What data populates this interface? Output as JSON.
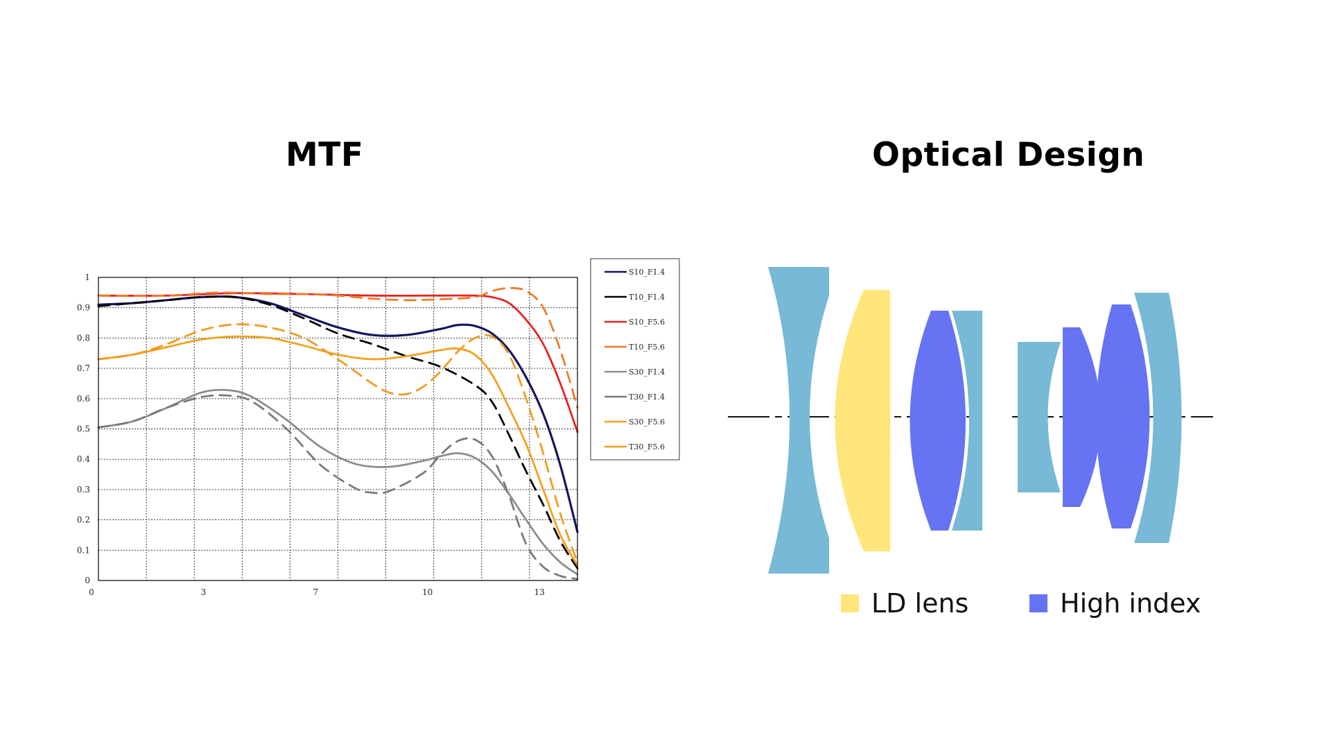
{
  "titles": {
    "mtf": "MTF",
    "optical": "Optical Design"
  },
  "optical_legend": [
    {
      "label": "LD lens",
      "color": "#FFE57A"
    },
    {
      "label": "High index",
      "color": "#6673F2"
    }
  ],
  "lens_colors": {
    "standard": "#77B9D6",
    "ld": "#FFE57A",
    "high_index": "#6673F2"
  },
  "chart_data": {
    "type": "line",
    "title": "MTF",
    "xlabel": "",
    "ylabel": "",
    "xlim": [
      0,
      14
    ],
    "ylim": [
      0,
      1
    ],
    "x_ticks": [
      {
        "value": 0,
        "label": "0"
      },
      {
        "value": 3.27,
        "label": "3"
      },
      {
        "value": 6.55,
        "label": "7"
      },
      {
        "value": 9.82,
        "label": "10"
      },
      {
        "value": 13.09,
        "label": "13"
      }
    ],
    "x_gridlines": [
      1.4,
      2.8,
      4.2,
      5.6,
      7.0,
      8.4,
      9.8,
      11.2,
      12.6
    ],
    "y_ticks": [
      0,
      0.1,
      0.2,
      0.3,
      0.4,
      0.5,
      0.6,
      0.7,
      0.8,
      0.9,
      1
    ],
    "grid": true,
    "legend_position": "right",
    "series": [
      {
        "name": "S10_F1.4",
        "color": "#14165E",
        "dash": false,
        "points": [
          [
            0,
            0.91
          ],
          [
            1,
            0.915
          ],
          [
            2,
            0.925
          ],
          [
            3,
            0.935
          ],
          [
            4,
            0.935
          ],
          [
            5,
            0.915
          ],
          [
            6,
            0.875
          ],
          [
            7,
            0.835
          ],
          [
            8,
            0.81
          ],
          [
            9,
            0.81
          ],
          [
            10,
            0.83
          ],
          [
            10.5,
            0.843
          ],
          [
            11,
            0.84
          ],
          [
            11.5,
            0.815
          ],
          [
            12,
            0.76
          ],
          [
            12.5,
            0.67
          ],
          [
            13,
            0.55
          ],
          [
            13.5,
            0.38
          ],
          [
            14,
            0.16
          ]
        ]
      },
      {
        "name": "T10_F1.4",
        "color": "#000000",
        "dash": true,
        "points": [
          [
            0,
            0.905
          ],
          [
            1,
            0.915
          ],
          [
            2,
            0.925
          ],
          [
            3,
            0.935
          ],
          [
            4,
            0.935
          ],
          [
            5,
            0.91
          ],
          [
            6,
            0.865
          ],
          [
            7,
            0.815
          ],
          [
            8,
            0.78
          ],
          [
            9,
            0.74
          ],
          [
            10,
            0.705
          ],
          [
            11,
            0.645
          ],
          [
            11.5,
            0.59
          ],
          [
            12,
            0.48
          ],
          [
            12.5,
            0.36
          ],
          [
            13,
            0.25
          ],
          [
            13.5,
            0.13
          ],
          [
            14,
            0.04
          ]
        ]
      },
      {
        "name": "S10_F5.6",
        "color": "#E8211F",
        "dash": false,
        "points": [
          [
            0,
            0.94
          ],
          [
            2,
            0.94
          ],
          [
            4,
            0.948
          ],
          [
            6,
            0.945
          ],
          [
            8,
            0.94
          ],
          [
            10,
            0.94
          ],
          [
            11,
            0.94
          ],
          [
            11.5,
            0.935
          ],
          [
            12,
            0.915
          ],
          [
            12.5,
            0.86
          ],
          [
            13,
            0.78
          ],
          [
            13.5,
            0.65
          ],
          [
            14,
            0.49
          ]
        ]
      },
      {
        "name": "T10_F5.6",
        "color": "#F07B27",
        "dash": true,
        "points": [
          [
            0,
            0.94
          ],
          [
            2,
            0.94
          ],
          [
            3.5,
            0.95
          ],
          [
            5,
            0.945
          ],
          [
            6,
            0.945
          ],
          [
            7,
            0.94
          ],
          [
            8,
            0.93
          ],
          [
            9,
            0.925
          ],
          [
            10,
            0.928
          ],
          [
            11,
            0.935
          ],
          [
            11.5,
            0.955
          ],
          [
            12,
            0.965
          ],
          [
            12.5,
            0.955
          ],
          [
            13,
            0.9
          ],
          [
            13.5,
            0.76
          ],
          [
            14,
            0.57
          ]
        ]
      },
      {
        "name": "S30_F1.4",
        "color": "#8C8C8C",
        "dash": false,
        "points": [
          [
            0,
            0.505
          ],
          [
            1,
            0.525
          ],
          [
            2,
            0.57
          ],
          [
            3,
            0.62
          ],
          [
            3.8,
            0.628
          ],
          [
            4.5,
            0.605
          ],
          [
            5.5,
            0.53
          ],
          [
            6.5,
            0.44
          ],
          [
            7.5,
            0.385
          ],
          [
            8.5,
            0.375
          ],
          [
            9.5,
            0.395
          ],
          [
            10,
            0.41
          ],
          [
            10.5,
            0.42
          ],
          [
            11,
            0.405
          ],
          [
            11.5,
            0.36
          ],
          [
            12,
            0.285
          ],
          [
            12.5,
            0.2
          ],
          [
            13,
            0.12
          ],
          [
            13.5,
            0.06
          ],
          [
            14,
            0.02
          ]
        ]
      },
      {
        "name": "T30_F1.4",
        "color": "#7A7A7A",
        "dash": true,
        "points": [
          [
            0,
            0.505
          ],
          [
            1,
            0.525
          ],
          [
            2,
            0.57
          ],
          [
            3,
            0.605
          ],
          [
            3.8,
            0.61
          ],
          [
            4.5,
            0.59
          ],
          [
            5.5,
            0.5
          ],
          [
            6.5,
            0.38
          ],
          [
            7.5,
            0.305
          ],
          [
            8,
            0.29
          ],
          [
            8.5,
            0.295
          ],
          [
            9.5,
            0.355
          ],
          [
            10,
            0.415
          ],
          [
            10.5,
            0.46
          ],
          [
            11,
            0.465
          ],
          [
            11.5,
            0.41
          ],
          [
            12,
            0.28
          ],
          [
            12.5,
            0.12
          ],
          [
            13,
            0.045
          ],
          [
            13.5,
            0.015
          ],
          [
            14,
            0.005
          ]
        ]
      },
      {
        "name": "S30_F5.6",
        "color": "#F5A01E",
        "dash": false,
        "points": [
          [
            0,
            0.73
          ],
          [
            1,
            0.745
          ],
          [
            2,
            0.77
          ],
          [
            3,
            0.795
          ],
          [
            4,
            0.805
          ],
          [
            5,
            0.8
          ],
          [
            6,
            0.775
          ],
          [
            7,
            0.745
          ],
          [
            8,
            0.73
          ],
          [
            9,
            0.74
          ],
          [
            10,
            0.76
          ],
          [
            10.5,
            0.765
          ],
          [
            11,
            0.745
          ],
          [
            11.5,
            0.68
          ],
          [
            12,
            0.57
          ],
          [
            12.5,
            0.45
          ],
          [
            13,
            0.3
          ],
          [
            13.5,
            0.15
          ],
          [
            14,
            0.05
          ]
        ]
      },
      {
        "name": "T30_F5.6",
        "color": "#F39A1F",
        "dash": true,
        "points": [
          [
            0,
            0.73
          ],
          [
            1,
            0.745
          ],
          [
            2,
            0.78
          ],
          [
            3,
            0.825
          ],
          [
            4,
            0.845
          ],
          [
            5,
            0.835
          ],
          [
            6,
            0.8
          ],
          [
            7,
            0.73
          ],
          [
            8,
            0.65
          ],
          [
            8.5,
            0.62
          ],
          [
            9,
            0.615
          ],
          [
            9.5,
            0.64
          ],
          [
            10,
            0.69
          ],
          [
            10.5,
            0.755
          ],
          [
            11,
            0.8
          ],
          [
            11.5,
            0.805
          ],
          [
            12,
            0.745
          ],
          [
            12.5,
            0.6
          ],
          [
            13,
            0.42
          ],
          [
            13.5,
            0.22
          ],
          [
            14,
            0.06
          ]
        ]
      }
    ]
  }
}
